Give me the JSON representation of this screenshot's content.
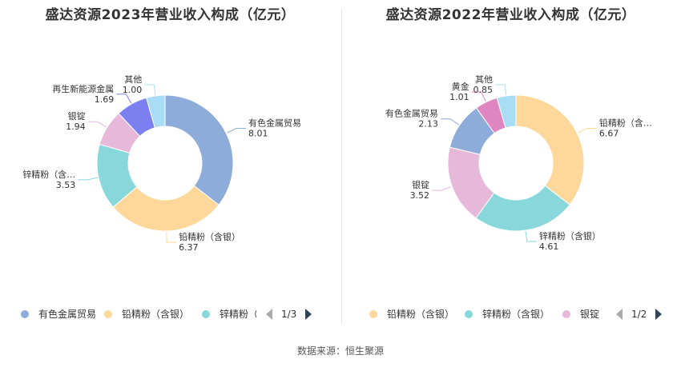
{
  "footer": {
    "source": "数据来源：恒生聚源"
  },
  "chart_data": [
    {
      "type": "pie",
      "title": "盛达资源2023年营业收入构成（亿元）",
      "slices": [
        {
          "label": "有色金属贸易",
          "value": 8.01,
          "display": "8.01",
          "color": "#8eacd9"
        },
        {
          "label": "铅精粉（含银）",
          "value": 6.37,
          "display": "6.37",
          "color": "#fdd89a"
        },
        {
          "label": "锌精粉（含银）",
          "callout": "锌精粉（含…",
          "value": 3.53,
          "display": "3.53",
          "color": "#87d7db"
        },
        {
          "label": "银锭",
          "value": 1.94,
          "display": "1.94",
          "color": "#e6b8d9"
        },
        {
          "label": "再生新能源金属",
          "value": 1.69,
          "display": "1.69",
          "color": "#7b7ff0"
        },
        {
          "label": "其他",
          "value": 1.0,
          "display": "1.00",
          "color": "#a9ddf6"
        }
      ],
      "legend": {
        "items": [
          "有色金属贸易",
          "铅精粉（含银）",
          "锌精粉（"
        ],
        "page": "1/3"
      }
    },
    {
      "type": "pie",
      "title": "盛达资源2022年营业收入构成（亿元）",
      "slices": [
        {
          "label": "铅精粉（含银）",
          "callout": "铅精粉（含…",
          "value": 6.67,
          "display": "6.67",
          "color": "#fdd89a"
        },
        {
          "label": "锌精粉（含银）",
          "value": 4.61,
          "display": "4.61",
          "color": "#87d7db"
        },
        {
          "label": "银锭",
          "value": 3.52,
          "display": "3.52",
          "color": "#e6b8d9"
        },
        {
          "label": "有色金属贸易",
          "value": 2.13,
          "display": "2.13",
          "color": "#8eacd9"
        },
        {
          "label": "黄金",
          "value": 1.01,
          "display": "1.01",
          "color": "#df86c2"
        },
        {
          "label": "其他",
          "value": 0.85,
          "display": "0.85",
          "color": "#a9ddf6"
        }
      ],
      "legend": {
        "items": [
          "铅精粉（含银）",
          "锌精粉（含银）",
          "银锭"
        ],
        "page": "1/2"
      }
    }
  ]
}
